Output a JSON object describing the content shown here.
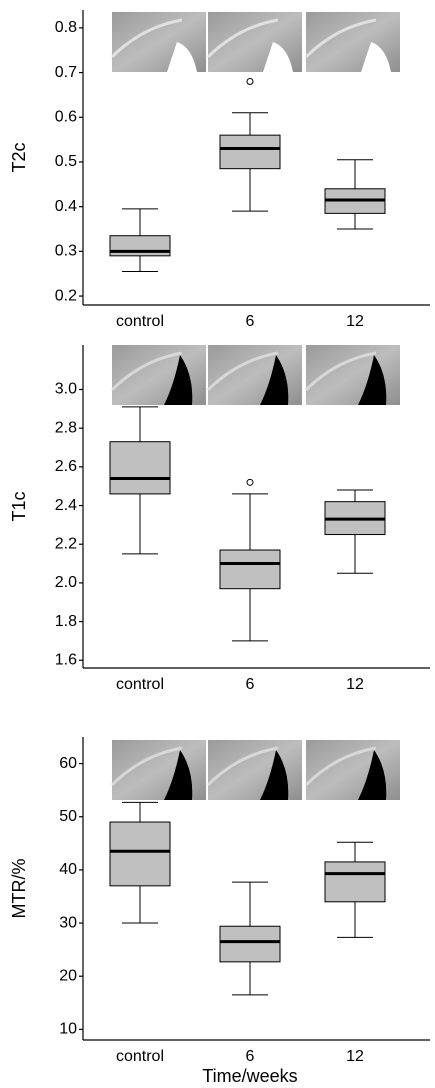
{
  "chart_data": [
    {
      "type": "box",
      "ylabel": "T2c",
      "categories": [
        "control",
        "6",
        "12"
      ],
      "ylim": [
        0.18,
        0.84
      ],
      "yticks": [
        0.2,
        0.3,
        0.4,
        0.5,
        0.6,
        0.7,
        0.8
      ],
      "color": "#c0c0c0",
      "boxes": [
        {
          "min": 0.255,
          "q1": 0.29,
          "median": 0.3,
          "q3": 0.335,
          "max": 0.395
        },
        {
          "min": 0.39,
          "q1": 0.485,
          "median": 0.53,
          "q3": 0.56,
          "max": 0.61,
          "outliers": [
            0.68
          ]
        },
        {
          "min": 0.35,
          "q1": 0.385,
          "median": 0.415,
          "q3": 0.44,
          "max": 0.505
        }
      ]
    },
    {
      "type": "box",
      "ylabel": "T1c",
      "categories": [
        "control",
        "6",
        "12"
      ],
      "ylim": [
        1.56,
        3.23
      ],
      "yticks": [
        1.6,
        1.8,
        {
          "value": 2,
          "label": "2.0"
        },
        2.2,
        2.4,
        2.6,
        2.8,
        {
          "value": 3,
          "label": "3.0"
        }
      ],
      "color": "#c0c0c0",
      "boxes": [
        {
          "min": 2.15,
          "q1": 2.46,
          "median": 2.54,
          "q3": 2.73,
          "max": 2.91
        },
        {
          "min": 1.7,
          "q1": 1.97,
          "median": 2.1,
          "q3": 2.17,
          "max": 2.46,
          "outliers": [
            2.52
          ]
        },
        {
          "min": 2.05,
          "q1": 2.25,
          "median": 2.33,
          "q3": 2.42,
          "max": 2.48
        }
      ]
    },
    {
      "type": "box",
      "ylabel": "MTR/%",
      "xlabel": "Time/weeks",
      "categories": [
        "control",
        "6",
        "12"
      ],
      "ylim": [
        8,
        65
      ],
      "yticks": [
        10,
        20,
        30,
        40,
        50,
        60
      ],
      "color": "#c0c0c0",
      "boxes": [
        {
          "min": 30,
          "q1": 37,
          "median": 43.5,
          "q3": 49,
          "max": 52.7
        },
        {
          "min": 16.5,
          "q1": 22.7,
          "median": 26.5,
          "q3": 29.4,
          "max": 37.7
        },
        {
          "min": 27.3,
          "q1": 34,
          "median": 39.3,
          "q3": 41.5,
          "max": 45.2
        }
      ]
    }
  ]
}
